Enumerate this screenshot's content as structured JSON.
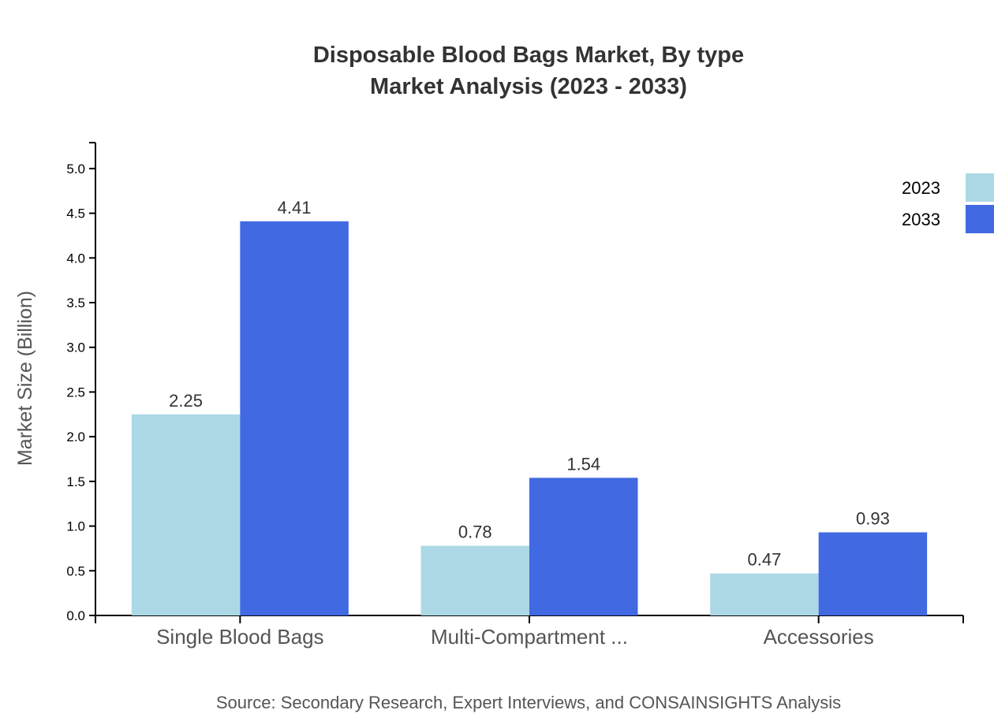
{
  "chart_data": {
    "type": "bar",
    "title": "Disposable Blood Bags Market, By type",
    "subtitle": "Market Analysis (2023 - 2033)",
    "xlabel": "",
    "ylabel": "Market Size (Billion)",
    "ylim": [
      0,
      5.29
    ],
    "yticks": [
      "0.0",
      "0.5",
      "1.0",
      "1.5",
      "2.0",
      "2.5",
      "3.0",
      "3.5",
      "4.0",
      "4.5",
      "5.0"
    ],
    "categories": [
      "Single Blood Bags",
      "Multi-Compartment ...",
      "Accessories"
    ],
    "series": [
      {
        "name": "2023",
        "values": [
          2.25,
          0.78,
          0.47
        ],
        "labels": [
          "2.25",
          "0.78",
          "0.47"
        ],
        "color": "#add8e6"
      },
      {
        "name": "2033",
        "values": [
          4.41,
          1.54,
          0.93
        ],
        "labels": [
          "4.41",
          "1.54",
          "0.93"
        ],
        "color": "#4169e1"
      }
    ],
    "legend_position": "top-right",
    "grid": false,
    "source": "Source: Secondary Research, Expert Interviews, and CONSAINSIGHTS Analysis"
  }
}
